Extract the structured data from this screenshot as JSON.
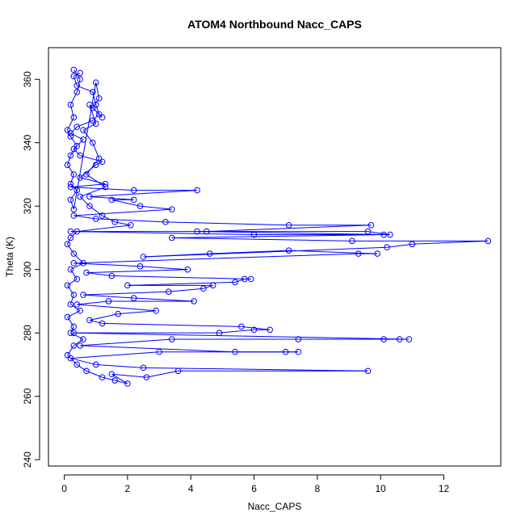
{
  "chart_data": {
    "type": "scatter",
    "title": "ATOM4 Northbound Nacc_CAPS",
    "xlabel": "Nacc_CAPS",
    "ylabel": "Theta (K)",
    "xlim": [
      -0.5,
      13.8
    ],
    "ylim": [
      238,
      370
    ],
    "xticks": [
      0,
      2,
      4,
      6,
      8,
      10,
      12
    ],
    "yticks": [
      240,
      260,
      280,
      300,
      320,
      340,
      360
    ],
    "grid": false,
    "legend": "none",
    "color": "#0000ff",
    "marker": "open-circle",
    "connected": true,
    "series": [
      {
        "points": [
          [
            0.3,
            363
          ],
          [
            0.5,
            360
          ],
          [
            0.4,
            356
          ],
          [
            0.2,
            352
          ],
          [
            0.3,
            348
          ],
          [
            0.1,
            344
          ],
          [
            0.2,
            342
          ],
          [
            0.4,
            339
          ],
          [
            0.2,
            336
          ],
          [
            0.1,
            333
          ],
          [
            0.3,
            330
          ],
          [
            0.2,
            327
          ],
          [
            0.4,
            325
          ],
          [
            0.2,
            322
          ],
          [
            0.3,
            319
          ],
          [
            1.0,
            359
          ],
          [
            1.1,
            354
          ],
          [
            0.9,
            351
          ],
          [
            1.2,
            348
          ],
          [
            0.8,
            352
          ],
          [
            1.0,
            346
          ],
          [
            0.6,
            344
          ],
          [
            0.9,
            340
          ],
          [
            1.1,
            335
          ],
          [
            0.7,
            330
          ],
          [
            1.3,
            326
          ],
          [
            0.5,
            323
          ],
          [
            0.8,
            320
          ],
          [
            1.2,
            317
          ],
          [
            1.6,
            315
          ],
          [
            2.1,
            314
          ],
          [
            0.4,
            312
          ],
          [
            0.2,
            310
          ],
          [
            0.1,
            308
          ],
          [
            0.3,
            305
          ],
          [
            0.6,
            302
          ],
          [
            0.2,
            300
          ],
          [
            0.4,
            297
          ],
          [
            0.1,
            295
          ],
          [
            0.3,
            292
          ],
          [
            0.2,
            289
          ],
          [
            0.5,
            287
          ],
          [
            0.1,
            285
          ],
          [
            0.3,
            282
          ],
          [
            0.2,
            280
          ],
          [
            0.6,
            278
          ],
          [
            0.3,
            276
          ],
          [
            0.1,
            273
          ],
          [
            0.4,
            270
          ],
          [
            0.7,
            268
          ],
          [
            1.2,
            266
          ],
          [
            1.6,
            265
          ],
          [
            2.0,
            264
          ],
          [
            1.5,
            267
          ],
          [
            2.6,
            266
          ],
          [
            3.6,
            268
          ],
          [
            9.6,
            268
          ],
          [
            2.5,
            269
          ],
          [
            1.0,
            270
          ],
          [
            0.2,
            272
          ],
          [
            3.0,
            274
          ],
          [
            7.0,
            274
          ],
          [
            7.4,
            274
          ],
          [
            5.4,
            274
          ],
          [
            0.5,
            276
          ],
          [
            3.4,
            278
          ],
          [
            7.4,
            278
          ],
          [
            10.1,
            278
          ],
          [
            10.6,
            278
          ],
          [
            10.9,
            278
          ],
          [
            0.3,
            280
          ],
          [
            4.9,
            280
          ],
          [
            6.0,
            281
          ],
          [
            6.5,
            281
          ],
          [
            5.6,
            282
          ],
          [
            1.2,
            283
          ],
          [
            0.8,
            284
          ],
          [
            1.7,
            286
          ],
          [
            2.9,
            287
          ],
          [
            0.4,
            289
          ],
          [
            1.4,
            290
          ],
          [
            4.1,
            290
          ],
          [
            2.2,
            291
          ],
          [
            0.6,
            292
          ],
          [
            3.3,
            293
          ],
          [
            4.4,
            294
          ],
          [
            4.7,
            295
          ],
          [
            2.0,
            295
          ],
          [
            5.4,
            296
          ],
          [
            5.7,
            297
          ],
          [
            5.9,
            297
          ],
          [
            1.5,
            298
          ],
          [
            0.7,
            299
          ],
          [
            3.9,
            300
          ],
          [
            2.4,
            301
          ],
          [
            0.3,
            302
          ],
          [
            9.3,
            305
          ],
          [
            9.9,
            305
          ],
          [
            7.1,
            306
          ],
          [
            4.6,
            305
          ],
          [
            2.5,
            304
          ],
          [
            10.2,
            307
          ],
          [
            11.0,
            308
          ],
          [
            13.4,
            309
          ],
          [
            9.1,
            309
          ],
          [
            3.4,
            310
          ],
          [
            10.1,
            311
          ],
          [
            6.0,
            311
          ],
          [
            0.2,
            312
          ],
          [
            9.6,
            312
          ],
          [
            10.3,
            311
          ],
          [
            4.2,
            312
          ],
          [
            4.5,
            312
          ],
          [
            9.7,
            314
          ],
          [
            7.1,
            314
          ],
          [
            3.2,
            315
          ],
          [
            1.0,
            316
          ],
          [
            0.3,
            317
          ],
          [
            3.4,
            319
          ],
          [
            2.4,
            320
          ],
          [
            1.5,
            322
          ],
          [
            2.2,
            322
          ],
          [
            0.8,
            323
          ],
          [
            4.2,
            325
          ],
          [
            2.2,
            325
          ],
          [
            0.2,
            326
          ],
          [
            1.3,
            327
          ],
          [
            0.5,
            329
          ],
          [
            1.0,
            333
          ],
          [
            1.2,
            334
          ],
          [
            0.5,
            336
          ],
          [
            0.3,
            338
          ],
          [
            0.6,
            341
          ],
          [
            0.2,
            343
          ],
          [
            0.4,
            345
          ],
          [
            0.9,
            347
          ],
          [
            1.1,
            349
          ],
          [
            1.0,
            352
          ],
          [
            0.9,
            356
          ],
          [
            0.4,
            358
          ],
          [
            0.3,
            361
          ],
          [
            0.5,
            362
          ]
        ]
      }
    ]
  }
}
